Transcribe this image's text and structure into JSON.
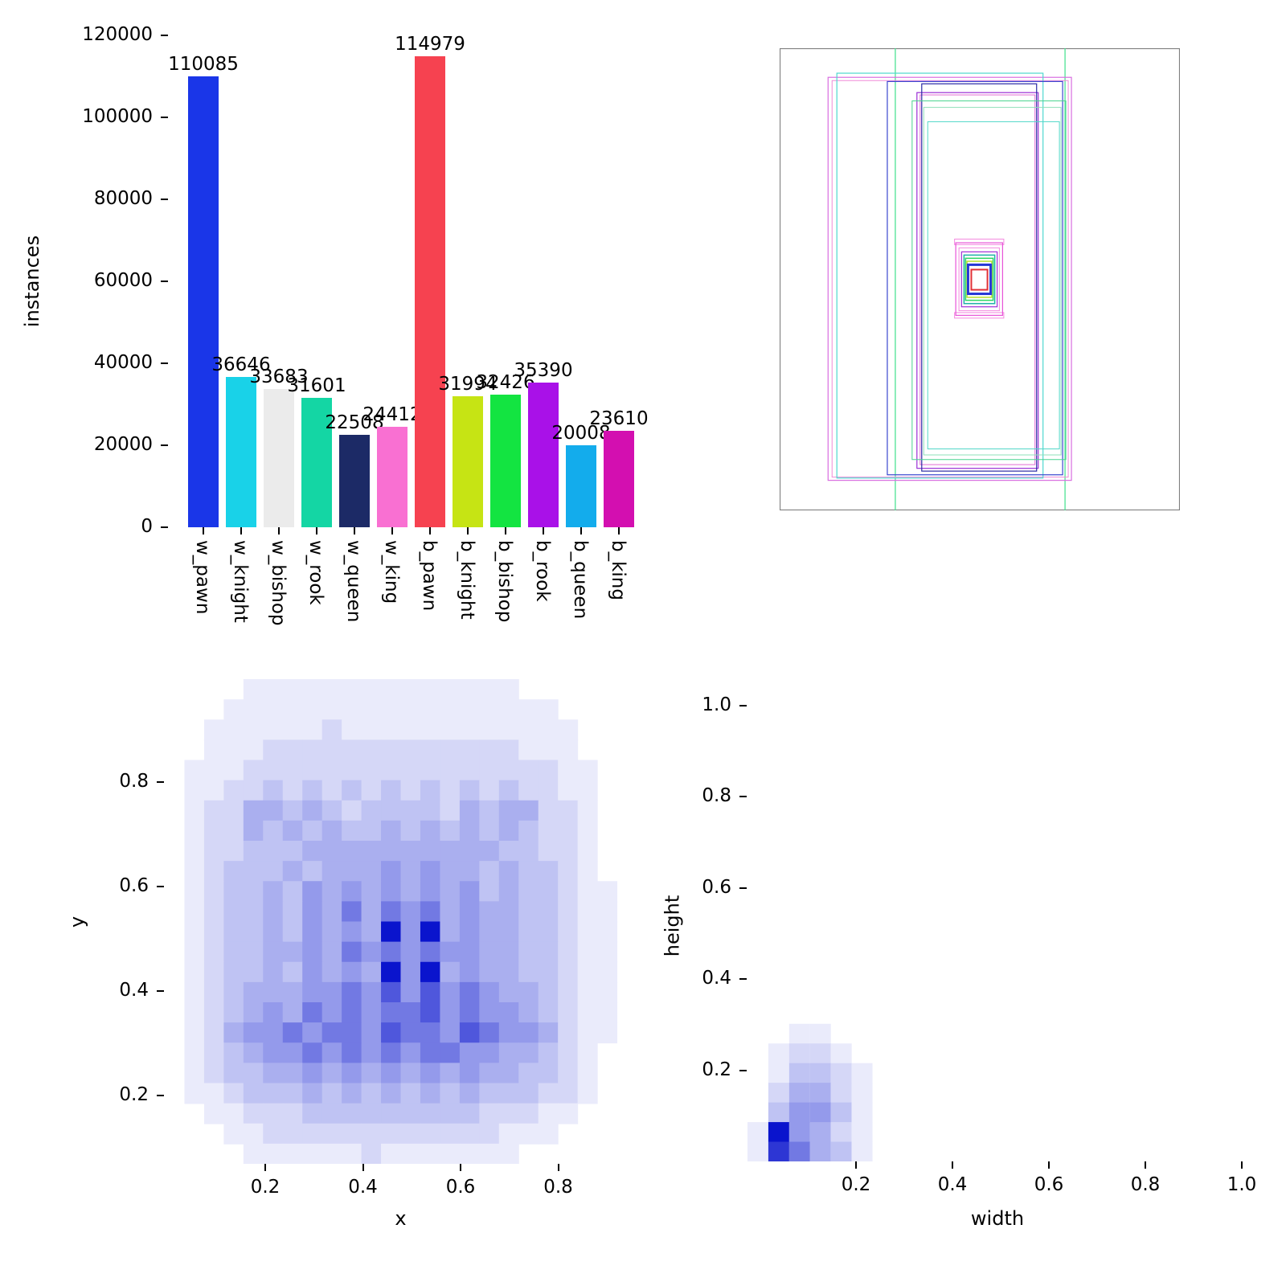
{
  "figure": {
    "background": "#ffffff"
  },
  "chart_data": [
    {
      "type": "bar",
      "title": "",
      "xlabel": "",
      "ylabel": "instances",
      "ylim": [
        0,
        120000
      ],
      "grid": false,
      "legend": "none",
      "ytick_values": [
        0,
        20000,
        40000,
        60000,
        80000,
        100000,
        120000
      ],
      "ytick_labels": [
        "0",
        "20000",
        "40000",
        "60000",
        "80000",
        "100000",
        "120000"
      ],
      "categories": [
        "w_pawn",
        "w_knight",
        "w_bishop",
        "w_rook",
        "w_queen",
        "w_king",
        "b_pawn",
        "b_knight",
        "b_bishop",
        "b_rook",
        "b_queen",
        "b_king"
      ],
      "values": [
        110085,
        36646,
        33683,
        31601,
        22508,
        24412,
        114979,
        31994,
        32426,
        35390,
        20008,
        23610
      ],
      "value_labels": [
        "110085",
        "36646",
        "33683",
        "31601",
        "22508",
        "24412",
        "114979",
        "31994",
        "32426",
        "35390",
        "20008",
        "23610"
      ],
      "bar_colors": [
        "#1a36e8",
        "#19d2e8",
        "#ebebeb",
        "#14d6a4",
        "#1c2a66",
        "#f970d2",
        "#f64250",
        "#c6e414",
        "#13e441",
        "#a911e8",
        "#13acec",
        "#d30fb0"
      ]
    },
    {
      "type": "boxes",
      "title": "",
      "note": "overlaid bounding-box outlines, nested around a small central cluster",
      "frame_color": "#7f7f7f",
      "rects": [
        {
          "x": 0.289,
          "y": -0.004,
          "w": 0.424,
          "h": 1.006,
          "c": "#3fe08c",
          "sw": 1.2
        },
        {
          "x": 0.121,
          "y": 0.063,
          "w": 0.608,
          "h": 0.872,
          "c": "#d96ee0",
          "sw": 1.2
        },
        {
          "x": 0.131,
          "y": 0.07,
          "w": 0.59,
          "h": 0.858,
          "c": "#f08ad8",
          "sw": 1
        },
        {
          "x": 0.143,
          "y": 0.054,
          "w": 0.515,
          "h": 0.876,
          "c": "#4fd8cf",
          "sw": 1.2
        },
        {
          "x": 0.269,
          "y": 0.072,
          "w": 0.438,
          "h": 0.851,
          "c": "#3a46cf",
          "sw": 1.2
        },
        {
          "x": 0.343,
          "y": 0.096,
          "w": 0.303,
          "h": 0.813,
          "c": "#9b2fd6",
          "sw": 1.2
        },
        {
          "x": 0.351,
          "y": 0.101,
          "w": 0.287,
          "h": 0.8,
          "c": "#e36ad4",
          "sw": 1
        },
        {
          "x": 0.355,
          "y": 0.077,
          "w": 0.287,
          "h": 0.838,
          "c": "#2b2ba6",
          "sw": 1.2
        },
        {
          "x": 0.331,
          "y": 0.114,
          "w": 0.384,
          "h": 0.776,
          "c": "#49d48f",
          "sw": 1
        },
        {
          "x": 0.36,
          "y": 0.128,
          "w": 0.343,
          "h": 0.752,
          "c": "#8fe0b8",
          "sw": 1
        },
        {
          "x": 0.37,
          "y": 0.159,
          "w": 0.329,
          "h": 0.708,
          "c": "#52d8c8",
          "sw": 1
        },
        {
          "x": 0.437,
          "y": 0.413,
          "w": 0.123,
          "h": 0.012,
          "c": "#f48ae0",
          "sw": 1
        },
        {
          "x": 0.437,
          "y": 0.572,
          "w": 0.123,
          "h": 0.012,
          "c": "#f48ae0",
          "sw": 1
        },
        {
          "x": 0.44,
          "y": 0.421,
          "w": 0.117,
          "h": 0.157,
          "c": "#e852d8",
          "sw": 1.2
        },
        {
          "x": 0.448,
          "y": 0.432,
          "w": 0.101,
          "h": 0.136,
          "c": "#f48ae0",
          "sw": 1
        },
        {
          "x": 0.4545,
          "y": 0.4406,
          "w": 0.0889,
          "h": 0.1189,
          "c": "#a22ed8",
          "sw": 1.2
        },
        {
          "x": 0.4606,
          "y": 0.4476,
          "w": 0.0768,
          "h": 0.1049,
          "c": "#1fb3a8",
          "sw": 1.5
        },
        {
          "x": 0.4646,
          "y": 0.4545,
          "w": 0.0687,
          "h": 0.0909,
          "c": "#2bd862",
          "sw": 1.5
        },
        {
          "x": 0.468,
          "y": 0.461,
          "w": 0.062,
          "h": 0.078,
          "c": "#b8e02a",
          "sw": 1.5
        },
        {
          "x": 0.4707,
          "y": 0.4685,
          "w": 0.0566,
          "h": 0.0629,
          "c": "#2436d6",
          "sw": 3
        },
        {
          "x": 0.4788,
          "y": 0.479,
          "w": 0.0404,
          "h": 0.0437,
          "c": "#e03038",
          "sw": 2
        }
      ]
    },
    {
      "type": "heatmap",
      "title": "",
      "xlabel": "x",
      "ylabel": "y",
      "xtick_values": [
        0.2,
        0.4,
        0.6,
        0.8
      ],
      "xtick_labels": [
        "0.2",
        "0.4",
        "0.6",
        "0.8"
      ],
      "ytick_values": [
        0.2,
        0.4,
        0.6,
        0.8
      ],
      "ytick_labels": [
        "0.2",
        "0.4",
        "0.6",
        "0.8"
      ],
      "xlim": [
        0.0,
        0.965
      ],
      "ylim": [
        0.035,
        1.0
      ],
      "palette": {
        "low": "#ffffff",
        "mid": "#969ceb",
        "high": "#0a14cd"
      },
      "hotspots": [
        {
          "x": 0.47,
          "y": 0.5
        },
        {
          "x": 0.53,
          "y": 0.5
        },
        {
          "x": 0.47,
          "y": 0.43
        },
        {
          "x": 0.53,
          "y": 0.43
        }
      ],
      "grid_rows": [
        "000011111111111111000000",
        "000111111111111111110000",
        "001111112111111111111000",
        "001112222222222222111000",
        "011122222222222222221100",
        "011223232323232323221100",
        "012244343233332434422100",
        "012243434334343434322100",
        "012233344444444443322100",
        "012333434445454434332100",
        "012334354545454534332110",
        "012334354646564544332110",
        "012334354549594544332110",
        "012334454656565544332110",
        "012334354549594544332110",
        "012344455657575654432110",
        "012345465656675655432110",
        "012455656657665765542110",
        "012345565656566554432100",
        "012334454545454544332100",
        "011233343434343433322100",
        "001122233333333322211000",
        "000112222222222221110000",
        "000011111121111111000000"
      ]
    },
    {
      "type": "heatmap",
      "title": "",
      "xlabel": "width",
      "ylabel": "height",
      "xtick_values": [
        0.2,
        0.4,
        0.6,
        0.8,
        1.0
      ],
      "xtick_labels": [
        "0.2",
        "0.4",
        "0.6",
        "0.8",
        "1.0"
      ],
      "ytick_values": [
        0.2,
        0.4,
        0.6,
        0.8,
        1.0
      ],
      "ytick_labels": [
        "0.2",
        "0.4",
        "0.6",
        "0.8",
        "1.0"
      ],
      "xlim": [
        0.0,
        1.05
      ],
      "ylim": [
        0.0,
        1.035
      ],
      "palette": {
        "low": "#ffffff",
        "mid": "#969ceb",
        "high": "#0a14cd"
      },
      "hotspots": [
        {
          "x": 0.05,
          "y": 0.06
        }
      ],
      "grid_rows": [
        "000000000000000000000000",
        "000000000000000000000000",
        "000000000000000000000000",
        "000000000000000000000000",
        "000000000000000000000000",
        "000000000000000000000000",
        "000000000000000000000000",
        "000000000000000000000000",
        "000000000000000000000000",
        "000000000000000000000000",
        "000000000000000000000000",
        "000000000000000000000000",
        "000000000000000000000000",
        "000000000000000000000000",
        "000000000000000000000000",
        "000000000000000000000000",
        "000000000000000000000000",
        "001100000000000000000000",
        "012210000000000000000000",
        "013321000000000000000000",
        "024421000000000000000000",
        "035531000000000000000000",
        "195421000000000000000000",
        "186431000000000000000000"
      ]
    }
  ]
}
